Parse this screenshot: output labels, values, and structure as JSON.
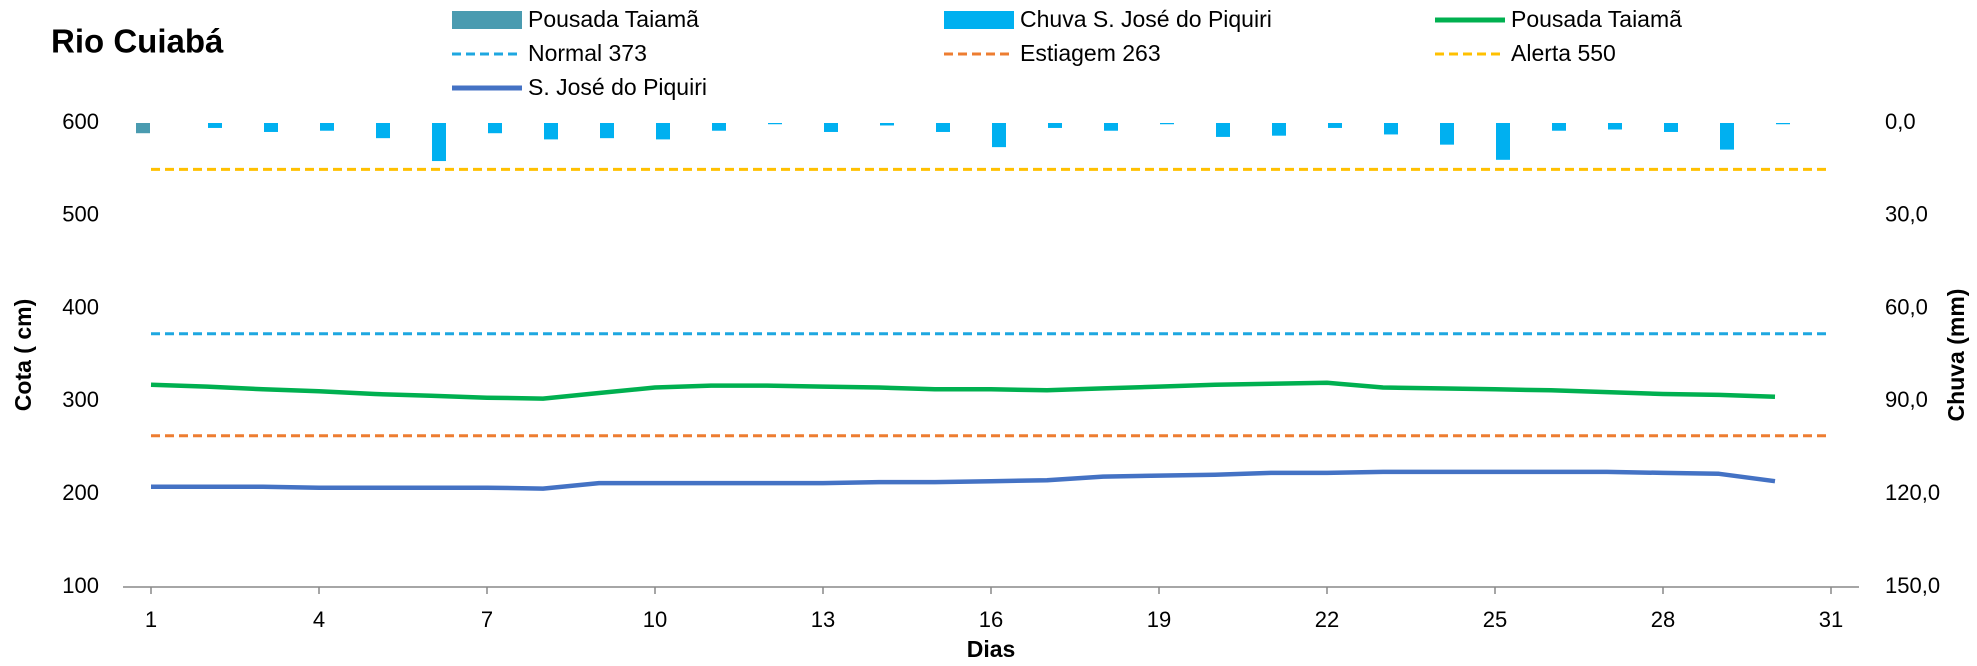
{
  "chart_data": {
    "type": "bar",
    "title": "Rio Cuiabá",
    "xlabel": "Dias",
    "ylabel": "Cota  ( cm)",
    "y2label": "Chuva (mm)",
    "x": [
      1,
      2,
      3,
      4,
      5,
      6,
      7,
      8,
      9,
      10,
      11,
      12,
      13,
      14,
      15,
      16,
      17,
      18,
      19,
      20,
      21,
      22,
      23,
      24,
      25,
      26,
      27,
      28,
      29,
      30,
      31
    ],
    "xlim": [
      0.5,
      31.5
    ],
    "xticks": [
      1,
      4,
      7,
      10,
      13,
      16,
      19,
      22,
      25,
      28,
      31
    ],
    "ylim": [
      100,
      600
    ],
    "yticks": [
      100,
      200,
      300,
      400,
      500,
      600
    ],
    "y2lim": [
      150,
      0
    ],
    "y2ticks": [
      {
        "value": 0,
        "label": "0,0"
      },
      {
        "value": 30,
        "label": "30,0"
      },
      {
        "value": 60,
        "label": "60,0"
      },
      {
        "value": 90,
        "label": "90,0"
      },
      {
        "value": 120,
        "label": "120,0"
      },
      {
        "value": 150,
        "label": "150,0"
      }
    ],
    "series": [
      {
        "name": "Pousada Taiamã",
        "type": "bar",
        "axis": "y2",
        "color": "#4a9bb0",
        "values": [
          3.3,
          0,
          0,
          0,
          0,
          0,
          0,
          0,
          0,
          0,
          0,
          0,
          0,
          0,
          0,
          0,
          0,
          0,
          0,
          0,
          0,
          0,
          0,
          0,
          0,
          0,
          0,
          0,
          0,
          0,
          null
        ]
      },
      {
        "name": "Chuva S. José do Piquiri",
        "type": "bar",
        "axis": "y2",
        "color": "#00b0f0",
        "values": [
          0,
          1.6,
          2.9,
          2.5,
          4.9,
          12.3,
          3.3,
          5.3,
          4.9,
          5.3,
          2.5,
          0.4,
          2.9,
          0.8,
          2.9,
          7.8,
          1.6,
          2.5,
          0.4,
          4.5,
          4.1,
          1.6,
          3.7,
          7.0,
          11.9,
          2.5,
          2.1,
          2.9,
          8.6,
          0.4,
          null
        ]
      },
      {
        "name": "Pousada Taiamã",
        "type": "line",
        "color": "#00b050",
        "values": [
          318,
          316,
          313,
          311,
          308,
          306,
          304,
          303,
          309,
          315,
          317,
          317,
          316,
          315,
          313,
          313,
          312,
          314,
          316,
          318,
          319,
          320,
          315,
          314,
          313,
          312,
          310,
          308,
          307,
          305,
          null
        ]
      },
      {
        "name": "Normal  373",
        "type": "line",
        "dash": true,
        "color": "#1ea7e0",
        "values": [
          373,
          373,
          373,
          373,
          373,
          373,
          373,
          373,
          373,
          373,
          373,
          373,
          373,
          373,
          373,
          373,
          373,
          373,
          373,
          373,
          373,
          373,
          373,
          373,
          373,
          373,
          373,
          373,
          373,
          373,
          373
        ]
      },
      {
        "name": "Estiagem 263",
        "type": "line",
        "dash": true,
        "color": "#ed7d31",
        "values": [
          263,
          263,
          263,
          263,
          263,
          263,
          263,
          263,
          263,
          263,
          263,
          263,
          263,
          263,
          263,
          263,
          263,
          263,
          263,
          263,
          263,
          263,
          263,
          263,
          263,
          263,
          263,
          263,
          263,
          263,
          263
        ]
      },
      {
        "name": "Alerta 550",
        "type": "line",
        "dash": true,
        "color": "#ffc000",
        "values": [
          550,
          550,
          550,
          550,
          550,
          550,
          550,
          550,
          550,
          550,
          550,
          550,
          550,
          550,
          550,
          550,
          550,
          550,
          550,
          550,
          550,
          550,
          550,
          550,
          550,
          550,
          550,
          550,
          550,
          550,
          550
        ]
      },
      {
        "name": "S. José do Piquiri",
        "type": "line",
        "color": "#4472c4",
        "values": [
          208,
          208,
          208,
          207,
          207,
          207,
          207,
          206,
          212,
          212,
          212,
          212,
          212,
          213,
          213,
          214,
          215,
          219,
          220,
          221,
          223,
          223,
          224,
          224,
          224,
          224,
          224,
          223,
          222,
          214,
          null
        ]
      }
    ]
  }
}
